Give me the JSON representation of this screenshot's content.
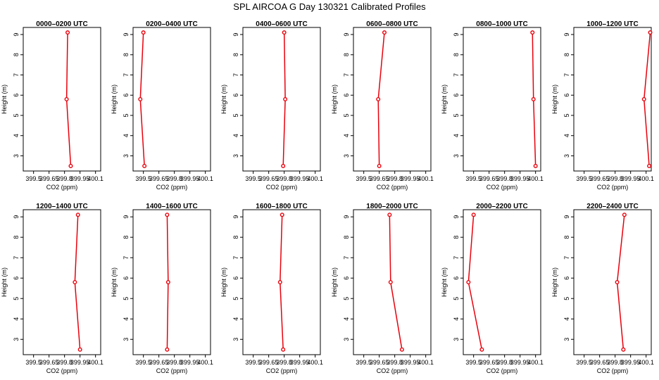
{
  "title": "SPL AIRCOA G  Day 130321  Calibrated Profiles",
  "colors": {
    "series": "#e8000b",
    "axis": "#000000",
    "background": "#ffffff"
  },
  "chart_data": [
    {
      "type": "line",
      "title": "0000–0200 UTC",
      "xlabel": "CO2 (ppm)",
      "ylabel": "Height (m)",
      "xlim": [
        399.4,
        400.15
      ],
      "ylim": [
        2.25,
        9.35
      ],
      "xticks": [
        399.5,
        399.65,
        399.8,
        399.95,
        400.1
      ],
      "xticklabels": [
        "399.5",
        "399.65",
        "399.8",
        "399.95",
        "400.1"
      ],
      "yticks": [
        3,
        4,
        5,
        6,
        7,
        8,
        9
      ],
      "series": [
        {
          "x": [
            399.83,
            399.82,
            399.86
          ],
          "y": [
            9.1,
            5.8,
            2.5
          ]
        }
      ]
    },
    {
      "type": "line",
      "title": "0200–0400 UTC",
      "xlabel": "CO2 (ppm)",
      "ylabel": "Height (m)",
      "xlim": [
        399.4,
        400.15
      ],
      "ylim": [
        2.25,
        9.35
      ],
      "xticks": [
        399.5,
        399.65,
        399.8,
        399.95,
        400.1
      ],
      "xticklabels": [
        "399.5",
        "399.65",
        "399.8",
        "399.95",
        "400.1"
      ],
      "yticks": [
        3,
        4,
        5,
        6,
        7,
        8,
        9
      ],
      "series": [
        {
          "x": [
            399.5,
            399.47,
            399.51
          ],
          "y": [
            9.1,
            5.8,
            2.5
          ]
        }
      ]
    },
    {
      "type": "line",
      "title": "0400–0600 UTC",
      "xlabel": "CO2 (ppm)",
      "ylabel": "Height (m)",
      "xlim": [
        399.4,
        400.15
      ],
      "ylim": [
        2.25,
        9.35
      ],
      "xticks": [
        399.5,
        399.65,
        399.8,
        399.95,
        400.1
      ],
      "xticklabels": [
        "399.5",
        "399.65",
        "399.8",
        "399.95",
        "400.1"
      ],
      "yticks": [
        3,
        4,
        5,
        6,
        7,
        8,
        9
      ],
      "series": [
        {
          "x": [
            399.8,
            399.81,
            399.79
          ],
          "y": [
            9.1,
            5.8,
            2.5
          ]
        }
      ]
    },
    {
      "type": "line",
      "title": "0600–0800 UTC",
      "xlabel": "CO2 (ppm)",
      "ylabel": "Height (m)",
      "xlim": [
        399.4,
        400.15
      ],
      "ylim": [
        2.25,
        9.35
      ],
      "xticks": [
        399.5,
        399.65,
        399.8,
        399.95,
        400.1
      ],
      "xticklabels": [
        "399.5",
        "399.65",
        "399.8",
        "399.95",
        "400.1"
      ],
      "yticks": [
        3,
        4,
        5,
        6,
        7,
        8,
        9
      ],
      "series": [
        {
          "x": [
            399.7,
            399.64,
            399.65
          ],
          "y": [
            9.1,
            5.8,
            2.5
          ]
        }
      ]
    },
    {
      "type": "line",
      "title": "0800–1000 UTC",
      "xlabel": "CO2 (ppm)",
      "ylabel": "Height (m)",
      "xlim": [
        399.4,
        400.15
      ],
      "ylim": [
        2.25,
        9.35
      ],
      "xticks": [
        399.5,
        399.65,
        399.8,
        399.95,
        400.1
      ],
      "xticklabels": [
        "399.5",
        "399.65",
        "399.8",
        "399.95",
        "400.1"
      ],
      "yticks": [
        3,
        4,
        5,
        6,
        7,
        8,
        9
      ],
      "series": [
        {
          "x": [
            400.07,
            400.08,
            400.1
          ],
          "y": [
            9.1,
            5.8,
            2.5
          ]
        }
      ]
    },
    {
      "type": "line",
      "title": "1000–1200 UTC",
      "xlabel": "CO2 (ppm)",
      "ylabel": "Height (m)",
      "xlim": [
        399.4,
        400.15
      ],
      "ylim": [
        2.25,
        9.35
      ],
      "xticks": [
        399.5,
        399.65,
        399.8,
        399.95,
        400.1
      ],
      "xticklabels": [
        "399.5",
        "399.65",
        "399.8",
        "399.95",
        "400.1"
      ],
      "yticks": [
        3,
        4,
        5,
        6,
        7,
        8,
        9
      ],
      "series": [
        {
          "x": [
            400.14,
            400.08,
            400.13
          ],
          "y": [
            9.1,
            5.8,
            2.5
          ]
        }
      ]
    },
    {
      "type": "line",
      "title": "1200–1400 UTC",
      "xlabel": "CO2 (ppm)",
      "ylabel": "Height (m)",
      "xlim": [
        399.4,
        400.15
      ],
      "ylim": [
        2.25,
        9.35
      ],
      "xticks": [
        399.5,
        399.65,
        399.8,
        399.95,
        400.1
      ],
      "xticklabels": [
        "399.5",
        "399.65",
        "399.8",
        "399.95",
        "400.1"
      ],
      "yticks": [
        3,
        4,
        5,
        6,
        7,
        8,
        9
      ],
      "series": [
        {
          "x": [
            399.93,
            399.9,
            399.95
          ],
          "y": [
            9.1,
            5.8,
            2.5
          ]
        }
      ]
    },
    {
      "type": "line",
      "title": "1400–1600 UTC",
      "xlabel": "CO2 (ppm)",
      "ylabel": "Height (m)",
      "xlim": [
        399.4,
        400.15
      ],
      "ylim": [
        2.25,
        9.35
      ],
      "xticks": [
        399.5,
        399.65,
        399.8,
        399.95,
        400.1
      ],
      "xticklabels": [
        "399.5",
        "399.65",
        "399.8",
        "399.95",
        "400.1"
      ],
      "yticks": [
        3,
        4,
        5,
        6,
        7,
        8,
        9
      ],
      "series": [
        {
          "x": [
            399.73,
            399.74,
            399.73
          ],
          "y": [
            9.1,
            5.8,
            2.5
          ]
        }
      ]
    },
    {
      "type": "line",
      "title": "1600–1800 UTC",
      "xlabel": "CO2 (ppm)",
      "ylabel": "Height (m)",
      "xlim": [
        399.4,
        400.15
      ],
      "ylim": [
        2.25,
        9.35
      ],
      "xticks": [
        399.5,
        399.65,
        399.8,
        399.95,
        400.1
      ],
      "xticklabels": [
        "399.5",
        "399.65",
        "399.8",
        "399.95",
        "400.1"
      ],
      "yticks": [
        3,
        4,
        5,
        6,
        7,
        8,
        9
      ],
      "series": [
        {
          "x": [
            399.78,
            399.76,
            399.79
          ],
          "y": [
            9.1,
            5.8,
            2.5
          ]
        }
      ]
    },
    {
      "type": "line",
      "title": "1800–2000 UTC",
      "xlabel": "CO2 (ppm)",
      "ylabel": "Height (m)",
      "xlim": [
        399.4,
        400.15
      ],
      "ylim": [
        2.25,
        9.35
      ],
      "xticks": [
        399.5,
        399.65,
        399.8,
        399.95,
        400.1
      ],
      "xticklabels": [
        "399.5",
        "399.65",
        "399.8",
        "399.95",
        "400.1"
      ],
      "yticks": [
        3,
        4,
        5,
        6,
        7,
        8,
        9
      ],
      "series": [
        {
          "x": [
            399.75,
            399.76,
            399.87
          ],
          "y": [
            9.1,
            5.8,
            2.5
          ]
        }
      ]
    },
    {
      "type": "line",
      "title": "2000–2200 UTC",
      "xlabel": "CO2 (ppm)",
      "ylabel": "Height (m)",
      "xlim": [
        399.4,
        400.15
      ],
      "ylim": [
        2.25,
        9.35
      ],
      "xticks": [
        399.5,
        399.65,
        399.8,
        399.95,
        400.1
      ],
      "xticklabels": [
        "399.5",
        "399.65",
        "399.8",
        "399.95",
        "400.1"
      ],
      "yticks": [
        3,
        4,
        5,
        6,
        7,
        8,
        9
      ],
      "series": [
        {
          "x": [
            399.5,
            399.45,
            399.58
          ],
          "y": [
            9.1,
            5.8,
            2.5
          ]
        }
      ]
    },
    {
      "type": "line",
      "title": "2200–2400 UTC",
      "xlabel": "CO2 (ppm)",
      "ylabel": "Height (m)",
      "xlim": [
        399.4,
        400.15
      ],
      "ylim": [
        2.25,
        9.35
      ],
      "xticks": [
        399.5,
        399.65,
        399.8,
        399.95,
        400.1
      ],
      "xticklabels": [
        "399.5",
        "399.65",
        "399.8",
        "399.95",
        "400.1"
      ],
      "yticks": [
        3,
        4,
        5,
        6,
        7,
        8,
        9
      ],
      "series": [
        {
          "x": [
            399.89,
            399.82,
            399.88
          ],
          "y": [
            9.1,
            5.8,
            2.5
          ]
        }
      ]
    }
  ]
}
